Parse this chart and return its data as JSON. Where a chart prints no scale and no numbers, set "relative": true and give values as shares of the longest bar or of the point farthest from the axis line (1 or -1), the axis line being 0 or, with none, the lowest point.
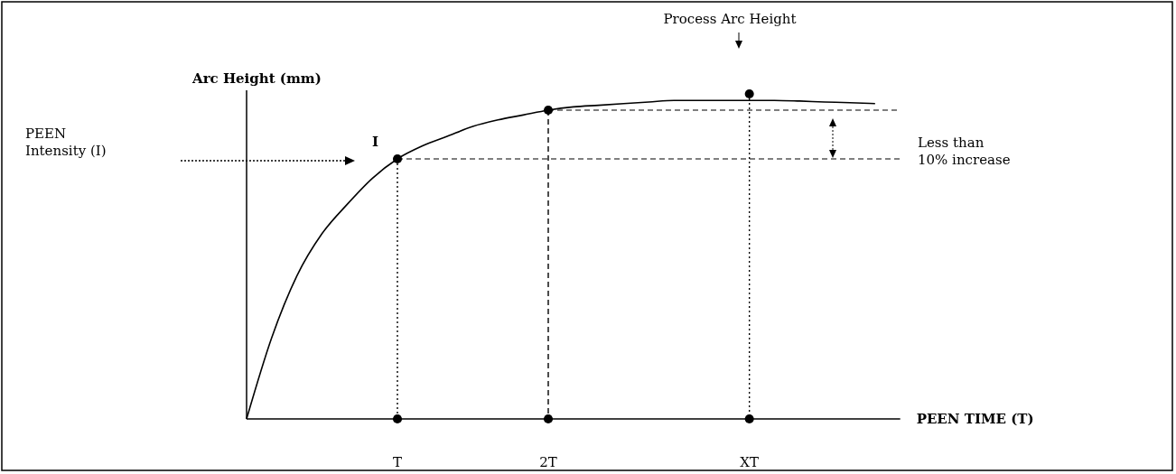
{
  "chart_data": {
    "type": "line",
    "relative": true,
    "ylabel": "Arc Height (mm)",
    "xlabel": "PEEN TIME (T)",
    "categories": [
      null,
      null,
      null,
      null,
      null,
      null,
      "T",
      null,
      null,
      null,
      null,
      null,
      "2T",
      null,
      null,
      null,
      null,
      null,
      null,
      null,
      "XT",
      null,
      null,
      null,
      null,
      null,
      null
    ],
    "series": [
      {
        "color": "#000000",
        "line_style": "solid",
        "marker": "none",
        "values": [
          0,
          0.25,
          0.44,
          0.57,
          0.66,
          0.74,
          0.8,
          0.84,
          0.87,
          0.9,
          0.92,
          0.935,
          0.95,
          0.96,
          0.965,
          0.97,
          0.975,
          0.98,
          0.98,
          0.98,
          0.98,
          0.98,
          0.978,
          0.975,
          0.973,
          0.97,
          null
        ]
      },
      {
        "type": "scatter",
        "color": "#000000",
        "marker": "circle",
        "values": [
          null,
          null,
          null,
          null,
          null,
          null,
          0.8,
          null,
          null,
          null,
          null,
          null,
          0.95,
          null,
          null,
          null,
          null,
          null,
          null,
          null,
          1,
          null,
          null,
          null,
          null,
          null,
          null
        ]
      },
      {
        "type": "scatter",
        "color": "#000000",
        "marker": "circle",
        "values": [
          null,
          null,
          null,
          null,
          null,
          null,
          0,
          null,
          null,
          null,
          null,
          null,
          0,
          null,
          null,
          null,
          null,
          null,
          null,
          null,
          0,
          null,
          null,
          null,
          null,
          null,
          null
        ]
      }
    ],
    "ref_lines": [
      {
        "axis": "x",
        "value": "T",
        "line_style": "dotted",
        "color": "#000000"
      },
      {
        "axis": "x",
        "value": "2T",
        "line_style": "dashed",
        "color": "#000000"
      },
      {
        "axis": "x",
        "value": "XT",
        "line_style": "dotted",
        "color": "#000000"
      },
      {
        "axis": "y",
        "value": 0.8,
        "line_style": "dashed",
        "color": "#000000"
      },
      {
        "axis": "y",
        "value": 0.95,
        "line_style": "dashed",
        "color": "#000000"
      }
    ],
    "annotations": [
      "I",
      "Process Arc Height",
      "PEEN Intensity (I)",
      "Less than 10% increase"
    ]
  }
}
